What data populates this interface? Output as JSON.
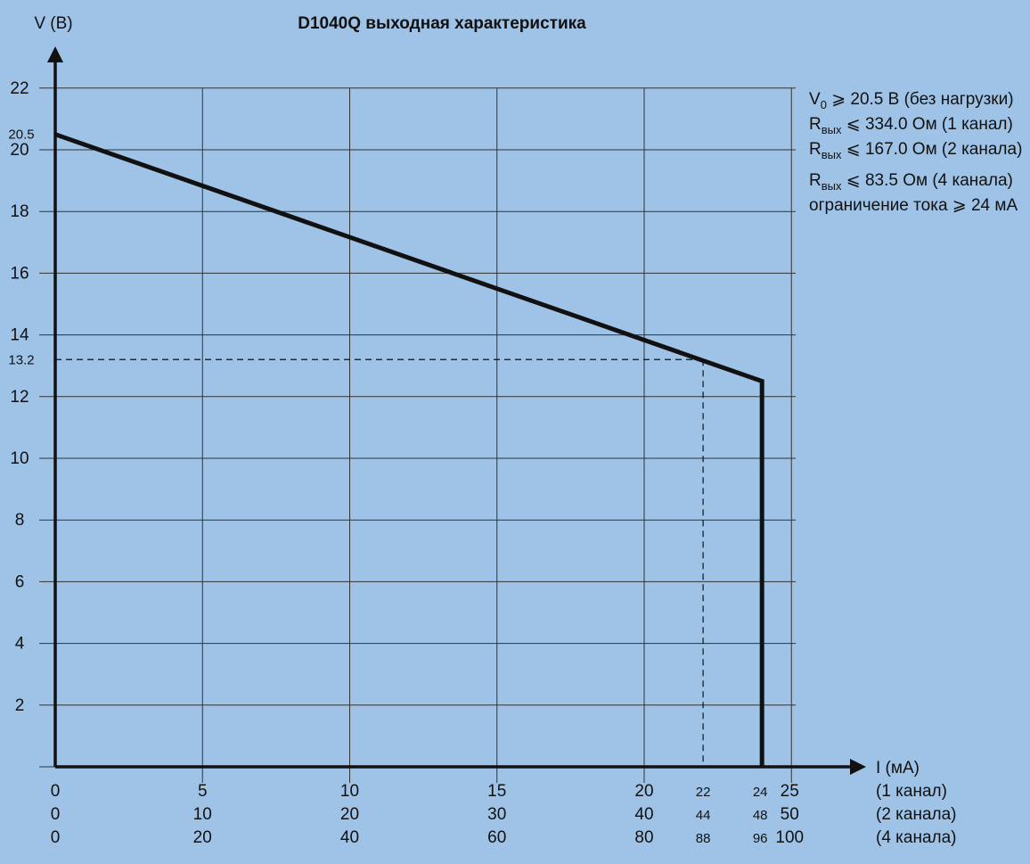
{
  "chart_data": {
    "type": "line",
    "title": "D1040Q выходная характеристика",
    "ylabel": "V (В)",
    "xlabel": "I (мА)",
    "xlim": [
      0,
      25
    ],
    "ylim": [
      0,
      22
    ],
    "grid": true,
    "colors": {
      "background": "#9ec3e6",
      "line": "#111111",
      "grid": "#333333"
    },
    "y_ticks": [
      {
        "value": 22,
        "label": "22"
      },
      {
        "value": 20,
        "label": "20"
      },
      {
        "value": 18,
        "label": "18"
      },
      {
        "value": 16,
        "label": "16"
      },
      {
        "value": 14,
        "label": "14"
      },
      {
        "value": 12,
        "label": "12"
      },
      {
        "value": 10,
        "label": "10"
      },
      {
        "value": 8,
        "label": "8"
      },
      {
        "value": 6,
        "label": "6"
      },
      {
        "value": 4,
        "label": "4"
      },
      {
        "value": 2,
        "label": "2"
      }
    ],
    "y_extra_ticks": [
      {
        "value": 20.5,
        "label": "20.5"
      },
      {
        "value": 13.2,
        "label": "13.2"
      }
    ],
    "x_gridlines": [
      5,
      10,
      15,
      20,
      25
    ],
    "x_axis_rows": [
      {
        "label": "(1 канал)",
        "ticks": [
          {
            "value": 0,
            "label": "0"
          },
          {
            "value": 5,
            "label": "5"
          },
          {
            "value": 10,
            "label": "10"
          },
          {
            "value": 15,
            "label": "15"
          },
          {
            "value": 20,
            "label": "20"
          },
          {
            "value": 22,
            "label": "22",
            "small": true
          },
          {
            "value": 24,
            "label": "24",
            "small": true
          },
          {
            "value": 25,
            "label": "25"
          }
        ]
      },
      {
        "label": "(2 канала)",
        "ticks": [
          {
            "value": 0,
            "label": "0"
          },
          {
            "value": 5,
            "label": "10"
          },
          {
            "value": 10,
            "label": "20"
          },
          {
            "value": 15,
            "label": "30"
          },
          {
            "value": 20,
            "label": "40"
          },
          {
            "value": 22,
            "label": "44",
            "small": true
          },
          {
            "value": 24,
            "label": "48",
            "small": true
          },
          {
            "value": 25,
            "label": "50"
          }
        ]
      },
      {
        "label": "(4 канала)",
        "ticks": [
          {
            "value": 0,
            "label": "0"
          },
          {
            "value": 5,
            "label": "20"
          },
          {
            "value": 10,
            "label": "40"
          },
          {
            "value": 15,
            "label": "60"
          },
          {
            "value": 20,
            "label": "80"
          },
          {
            "value": 22,
            "label": "88",
            "small": true
          },
          {
            "value": 24,
            "label": "96",
            "small": true
          },
          {
            "value": 25,
            "label": "100"
          }
        ]
      }
    ],
    "series": [
      {
        "x": [
          0,
          24,
          24
        ],
        "y": [
          20.5,
          12.5,
          0
        ]
      }
    ],
    "reference": {
      "x": 22,
      "y": 13.2
    },
    "specs": [
      {
        "symbol": "V",
        "sub": "0",
        "text": " ⩾ 20.5 В (без нагрузки)"
      },
      {
        "symbol": "R",
        "sub": "вых",
        "text": " ⩽ 334.0 Ом (1 канал)"
      },
      {
        "symbol": "R",
        "sub": "вых",
        "text": " ⩽ 167.0 Ом (2 канала)"
      },
      {
        "symbol": "R",
        "sub": "вых",
        "text": " ⩽ 83.5 Ом (4 канала)"
      },
      {
        "symbol": "",
        "sub": "",
        "text": "ограничение тока ⩾ 24 мА"
      }
    ]
  }
}
